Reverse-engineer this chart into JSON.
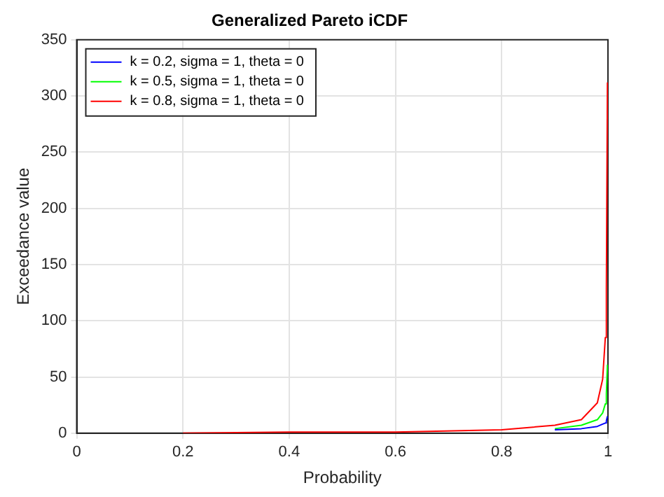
{
  "chart_data": {
    "type": "line",
    "title": "Generalized Pareto iCDF",
    "xlabel": "Probability",
    "ylabel": "Exceedance value",
    "x": [
      0.2,
      0.4,
      0.6,
      0.8,
      0.9,
      0.95,
      0.98,
      0.99,
      0.995,
      0.997,
      0.999
    ],
    "series": [
      {
        "name": "k = 0.2, sigma = 1, theta = 0",
        "color": "#0000ff",
        "values": [
          null,
          null,
          null,
          null,
          3,
          4,
          6,
          8,
          9,
          11,
          15
        ]
      },
      {
        "name": "k = 0.5, sigma = 1, theta = 0",
        "color": "#00ff00",
        "values": [
          null,
          null,
          null,
          null,
          4,
          7,
          12,
          18,
          26,
          35,
          61
        ]
      },
      {
        "name": "k = 0.8, sigma = 1, theta = 0",
        "color": "#ff0000",
        "values": [
          0,
          1,
          1,
          3,
          7,
          12,
          27,
          48,
          85,
          129,
          312
        ]
      }
    ],
    "xlim": [
      0,
      1
    ],
    "xticks": [
      0,
      0.2,
      0.4,
      0.6,
      0.8,
      1
    ],
    "ylim": [
      0,
      350
    ],
    "yticks": [
      0,
      50,
      100,
      150,
      200,
      250,
      300,
      350
    ],
    "grid": true,
    "legend": "top left",
    "marker": "none",
    "line_style": "solid"
  }
}
